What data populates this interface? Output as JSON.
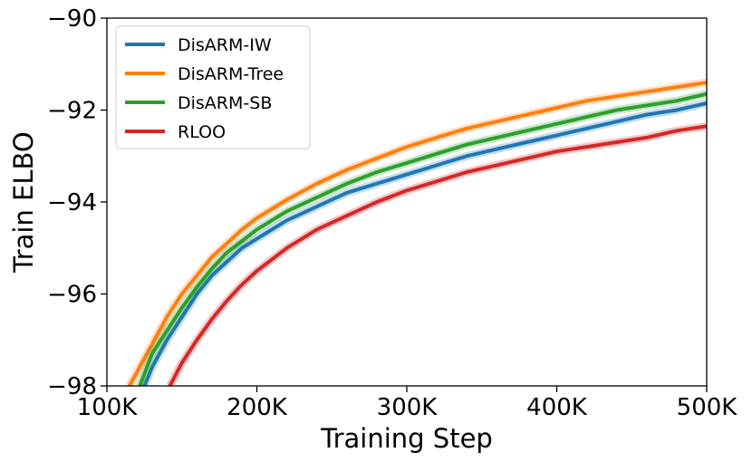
{
  "chart_data": {
    "type": "line",
    "xlabel": "Training Step",
    "ylabel": "Train ELBO",
    "xlim": [
      100000,
      500000
    ],
    "ylim": [
      -98,
      -90
    ],
    "xticks": [
      100000,
      200000,
      300000,
      400000,
      500000
    ],
    "xtick_labels": [
      "100K",
      "200K",
      "300K",
      "400K",
      "500K"
    ],
    "yticks": [
      -98,
      -96,
      -94,
      -92,
      -90
    ],
    "ytick_labels": [
      "−98",
      "−96",
      "−94",
      "−92",
      "−90"
    ],
    "legend_position": "top-left",
    "grid": false,
    "series": [
      {
        "name": "DisARM-IW",
        "color": "#1f77b4",
        "x": [
          125000,
          130000,
          140000,
          150000,
          160000,
          170000,
          180000,
          190000,
          200000,
          220000,
          240000,
          260000,
          280000,
          300000,
          320000,
          340000,
          360000,
          380000,
          400000,
          420000,
          440000,
          460000,
          480000,
          500000
        ],
        "y": [
          -98.0,
          -97.6,
          -97.0,
          -96.5,
          -96.0,
          -95.6,
          -95.3,
          -95.0,
          -94.8,
          -94.4,
          -94.1,
          -93.8,
          -93.6,
          -93.4,
          -93.2,
          -93.0,
          -92.85,
          -92.7,
          -92.55,
          -92.4,
          -92.25,
          -92.1,
          -92.0,
          -91.85
        ]
      },
      {
        "name": "DisARM-Tree",
        "color": "#ff7f0e",
        "x": [
          115000,
          120000,
          130000,
          140000,
          150000,
          160000,
          170000,
          180000,
          190000,
          200000,
          220000,
          240000,
          260000,
          280000,
          300000,
          320000,
          340000,
          360000,
          380000,
          400000,
          420000,
          440000,
          460000,
          480000,
          500000
        ],
        "y": [
          -98.0,
          -97.7,
          -97.1,
          -96.5,
          -96.0,
          -95.6,
          -95.2,
          -94.9,
          -94.6,
          -94.35,
          -93.95,
          -93.6,
          -93.3,
          -93.05,
          -92.8,
          -92.6,
          -92.4,
          -92.25,
          -92.1,
          -91.95,
          -91.8,
          -91.7,
          -91.6,
          -91.5,
          -91.4
        ]
      },
      {
        "name": "DisARM-SB",
        "color": "#2ca02c",
        "x": [
          122000,
          130000,
          140000,
          150000,
          160000,
          170000,
          180000,
          190000,
          200000,
          220000,
          240000,
          260000,
          280000,
          300000,
          320000,
          340000,
          360000,
          380000,
          400000,
          420000,
          440000,
          460000,
          480000,
          500000
        ],
        "y": [
          -98.0,
          -97.3,
          -96.8,
          -96.3,
          -95.85,
          -95.45,
          -95.1,
          -94.85,
          -94.6,
          -94.2,
          -93.9,
          -93.6,
          -93.35,
          -93.15,
          -92.95,
          -92.75,
          -92.6,
          -92.45,
          -92.3,
          -92.15,
          -92.0,
          -91.9,
          -91.8,
          -91.65
        ]
      },
      {
        "name": "RLOO",
        "color": "#d62728",
        "x": [
          142000,
          150000,
          160000,
          170000,
          180000,
          190000,
          200000,
          220000,
          240000,
          260000,
          280000,
          300000,
          320000,
          340000,
          360000,
          380000,
          400000,
          420000,
          440000,
          460000,
          480000,
          500000
        ],
        "y": [
          -98.0,
          -97.5,
          -97.0,
          -96.55,
          -96.15,
          -95.8,
          -95.5,
          -95.0,
          -94.6,
          -94.3,
          -94.0,
          -93.75,
          -93.55,
          -93.35,
          -93.2,
          -93.05,
          -92.9,
          -92.8,
          -92.7,
          -92.6,
          -92.45,
          -92.35
        ]
      }
    ]
  }
}
